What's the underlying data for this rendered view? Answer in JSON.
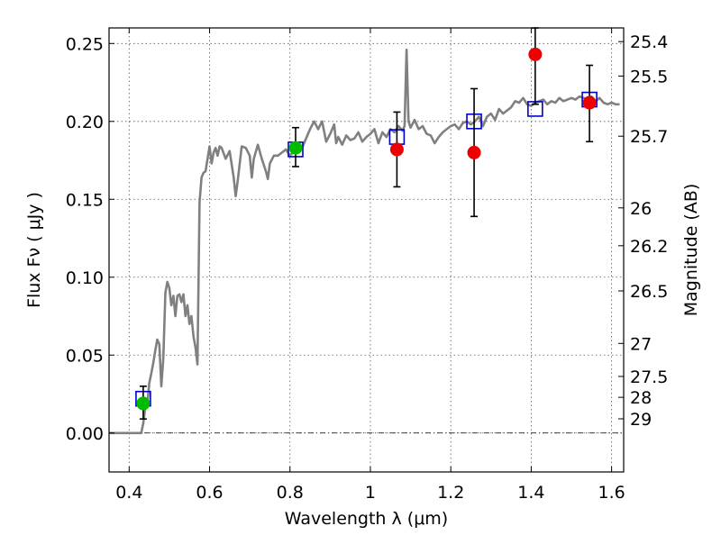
{
  "chart_data": {
    "type": "scatter",
    "xlabel": "Wavelength  λ (μm)",
    "ylabel": "Flux  Fν  ( μJy )",
    "y2label": "Magnitude (AB)",
    "xlim": [
      0.35,
      1.63
    ],
    "ylim": [
      -0.025,
      0.26
    ],
    "xticks": [
      0.4,
      0.6,
      0.8,
      1.0,
      1.2,
      1.4,
      1.6
    ],
    "xtick_labels": [
      "0.4",
      "0.6",
      "0.8",
      "1",
      "1.2",
      "1.4",
      "1.6"
    ],
    "yticks": [
      0.0,
      0.05,
      0.1,
      0.15,
      0.2,
      0.25
    ],
    "ytick_labels": [
      "0.00",
      "0.05",
      "0.10",
      "0.15",
      "0.20",
      "0.25"
    ],
    "y2ticks": [
      {
        "label": "25.4",
        "flux": 0.2512
      },
      {
        "label": "25.5",
        "flux": 0.2291
      },
      {
        "label": "25.7",
        "flux": 0.1905
      },
      {
        "label": "26",
        "flux": 0.1445
      },
      {
        "label": "26.2",
        "flux": 0.1202
      },
      {
        "label": "26.5",
        "flux": 0.0912
      },
      {
        "label": "27",
        "flux": 0.0575
      },
      {
        "label": "27.5",
        "flux": 0.0363
      },
      {
        "label": "28",
        "flux": 0.0229
      },
      {
        "label": "29",
        "flux": 0.0091
      }
    ],
    "grid": true,
    "template_color": "#808080",
    "template_sed": [
      [
        0.35,
        0.0
      ],
      [
        0.43,
        0.0
      ],
      [
        0.435,
        0.006
      ],
      [
        0.44,
        0.016
      ],
      [
        0.445,
        0.017
      ],
      [
        0.45,
        0.032
      ],
      [
        0.455,
        0.038
      ],
      [
        0.46,
        0.045
      ],
      [
        0.465,
        0.053
      ],
      [
        0.47,
        0.06
      ],
      [
        0.475,
        0.057
      ],
      [
        0.48,
        0.03
      ],
      [
        0.485,
        0.048
      ],
      [
        0.49,
        0.09
      ],
      [
        0.495,
        0.097
      ],
      [
        0.5,
        0.093
      ],
      [
        0.505,
        0.082
      ],
      [
        0.51,
        0.088
      ],
      [
        0.515,
        0.075
      ],
      [
        0.52,
        0.088
      ],
      [
        0.525,
        0.089
      ],
      [
        0.53,
        0.084
      ],
      [
        0.535,
        0.089
      ],
      [
        0.54,
        0.075
      ],
      [
        0.545,
        0.082
      ],
      [
        0.55,
        0.07
      ],
      [
        0.555,
        0.075
      ],
      [
        0.56,
        0.062
      ],
      [
        0.565,
        0.055
      ],
      [
        0.57,
        0.044
      ],
      [
        0.575,
        0.148
      ],
      [
        0.58,
        0.164
      ],
      [
        0.585,
        0.167
      ],
      [
        0.59,
        0.168
      ],
      [
        0.595,
        0.176
      ],
      [
        0.6,
        0.184
      ],
      [
        0.605,
        0.173
      ],
      [
        0.61,
        0.18
      ],
      [
        0.615,
        0.183
      ],
      [
        0.62,
        0.178
      ],
      [
        0.625,
        0.184
      ],
      [
        0.63,
        0.183
      ],
      [
        0.64,
        0.176
      ],
      [
        0.65,
        0.181
      ],
      [
        0.66,
        0.164
      ],
      [
        0.665,
        0.152
      ],
      [
        0.67,
        0.162
      ],
      [
        0.68,
        0.184
      ],
      [
        0.69,
        0.183
      ],
      [
        0.7,
        0.178
      ],
      [
        0.705,
        0.164
      ],
      [
        0.71,
        0.176
      ],
      [
        0.72,
        0.185
      ],
      [
        0.73,
        0.176
      ],
      [
        0.74,
        0.168
      ],
      [
        0.745,
        0.163
      ],
      [
        0.75,
        0.173
      ],
      [
        0.76,
        0.178
      ],
      [
        0.77,
        0.178
      ],
      [
        0.78,
        0.18
      ],
      [
        0.79,
        0.182
      ],
      [
        0.8,
        0.178
      ],
      [
        0.81,
        0.181
      ],
      [
        0.82,
        0.186
      ],
      [
        0.83,
        0.183
      ],
      [
        0.84,
        0.189
      ],
      [
        0.85,
        0.195
      ],
      [
        0.86,
        0.2
      ],
      [
        0.87,
        0.195
      ],
      [
        0.88,
        0.2
      ],
      [
        0.89,
        0.187
      ],
      [
        0.9,
        0.192
      ],
      [
        0.91,
        0.198
      ],
      [
        0.915,
        0.186
      ],
      [
        0.92,
        0.19
      ],
      [
        0.93,
        0.185
      ],
      [
        0.94,
        0.191
      ],
      [
        0.95,
        0.188
      ],
      [
        0.96,
        0.189
      ],
      [
        0.97,
        0.193
      ],
      [
        0.98,
        0.187
      ],
      [
        0.99,
        0.19
      ],
      [
        1.0,
        0.192
      ],
      [
        1.01,
        0.195
      ],
      [
        1.02,
        0.186
      ],
      [
        1.03,
        0.193
      ],
      [
        1.04,
        0.19
      ],
      [
        1.05,
        0.195
      ],
      [
        1.06,
        0.193
      ],
      [
        1.07,
        0.197
      ],
      [
        1.08,
        0.194
      ],
      [
        1.085,
        0.197
      ],
      [
        1.09,
        0.246
      ],
      [
        1.095,
        0.2
      ],
      [
        1.1,
        0.196
      ],
      [
        1.11,
        0.201
      ],
      [
        1.12,
        0.195
      ],
      [
        1.13,
        0.197
      ],
      [
        1.14,
        0.192
      ],
      [
        1.15,
        0.191
      ],
      [
        1.16,
        0.186
      ],
      [
        1.17,
        0.19
      ],
      [
        1.18,
        0.193
      ],
      [
        1.19,
        0.195
      ],
      [
        1.2,
        0.197
      ],
      [
        1.21,
        0.198
      ],
      [
        1.22,
        0.195
      ],
      [
        1.23,
        0.199
      ],
      [
        1.24,
        0.2
      ],
      [
        1.25,
        0.198
      ],
      [
        1.26,
        0.2
      ],
      [
        1.27,
        0.203
      ],
      [
        1.28,
        0.197
      ],
      [
        1.29,
        0.203
      ],
      [
        1.3,
        0.205
      ],
      [
        1.31,
        0.201
      ],
      [
        1.32,
        0.208
      ],
      [
        1.33,
        0.205
      ],
      [
        1.34,
        0.207
      ],
      [
        1.35,
        0.209
      ],
      [
        1.36,
        0.213
      ],
      [
        1.37,
        0.212
      ],
      [
        1.38,
        0.215
      ],
      [
        1.39,
        0.211
      ],
      [
        1.4,
        0.21
      ],
      [
        1.41,
        0.212
      ],
      [
        1.42,
        0.213
      ],
      [
        1.43,
        0.214
      ],
      [
        1.44,
        0.211
      ],
      [
        1.45,
        0.213
      ],
      [
        1.46,
        0.212
      ],
      [
        1.47,
        0.215
      ],
      [
        1.48,
        0.213
      ],
      [
        1.49,
        0.214
      ],
      [
        1.5,
        0.215
      ],
      [
        1.51,
        0.214
      ],
      [
        1.52,
        0.216
      ],
      [
        1.53,
        0.215
      ],
      [
        1.54,
        0.214
      ],
      [
        1.55,
        0.216
      ],
      [
        1.56,
        0.213
      ],
      [
        1.57,
        0.215
      ],
      [
        1.58,
        0.212
      ],
      [
        1.59,
        0.211
      ],
      [
        1.6,
        0.212
      ],
      [
        1.61,
        0.211
      ],
      [
        1.62,
        0.211
      ]
    ],
    "model_points": {
      "color": "#0000cc",
      "points": [
        {
          "x": 0.435,
          "y": 0.022
        },
        {
          "x": 0.814,
          "y": 0.182
        },
        {
          "x": 1.066,
          "y": 0.19
        },
        {
          "x": 1.258,
          "y": 0.2
        },
        {
          "x": 1.41,
          "y": 0.208
        },
        {
          "x": 1.545,
          "y": 0.214
        }
      ]
    },
    "observed_points": [
      {
        "x": 0.435,
        "y": 0.019,
        "yerr": [
          0.009,
          0.03
        ],
        "color": "#00bb00"
      },
      {
        "x": 0.814,
        "y": 0.183,
        "yerr": [
          0.171,
          0.196
        ],
        "color": "#00bb00"
      },
      {
        "x": 1.066,
        "y": 0.182,
        "yerr": [
          0.158,
          0.206
        ],
        "color": "#ee0000"
      },
      {
        "x": 1.258,
        "y": 0.18,
        "yerr": [
          0.139,
          0.221
        ],
        "color": "#ee0000"
      },
      {
        "x": 1.41,
        "y": 0.243,
        "yerr": [
          0.211,
          0.26
        ],
        "color": "#ee0000"
      },
      {
        "x": 1.545,
        "y": 0.212,
        "yerr": [
          0.187,
          0.236
        ],
        "color": "#ee0000"
      }
    ]
  }
}
